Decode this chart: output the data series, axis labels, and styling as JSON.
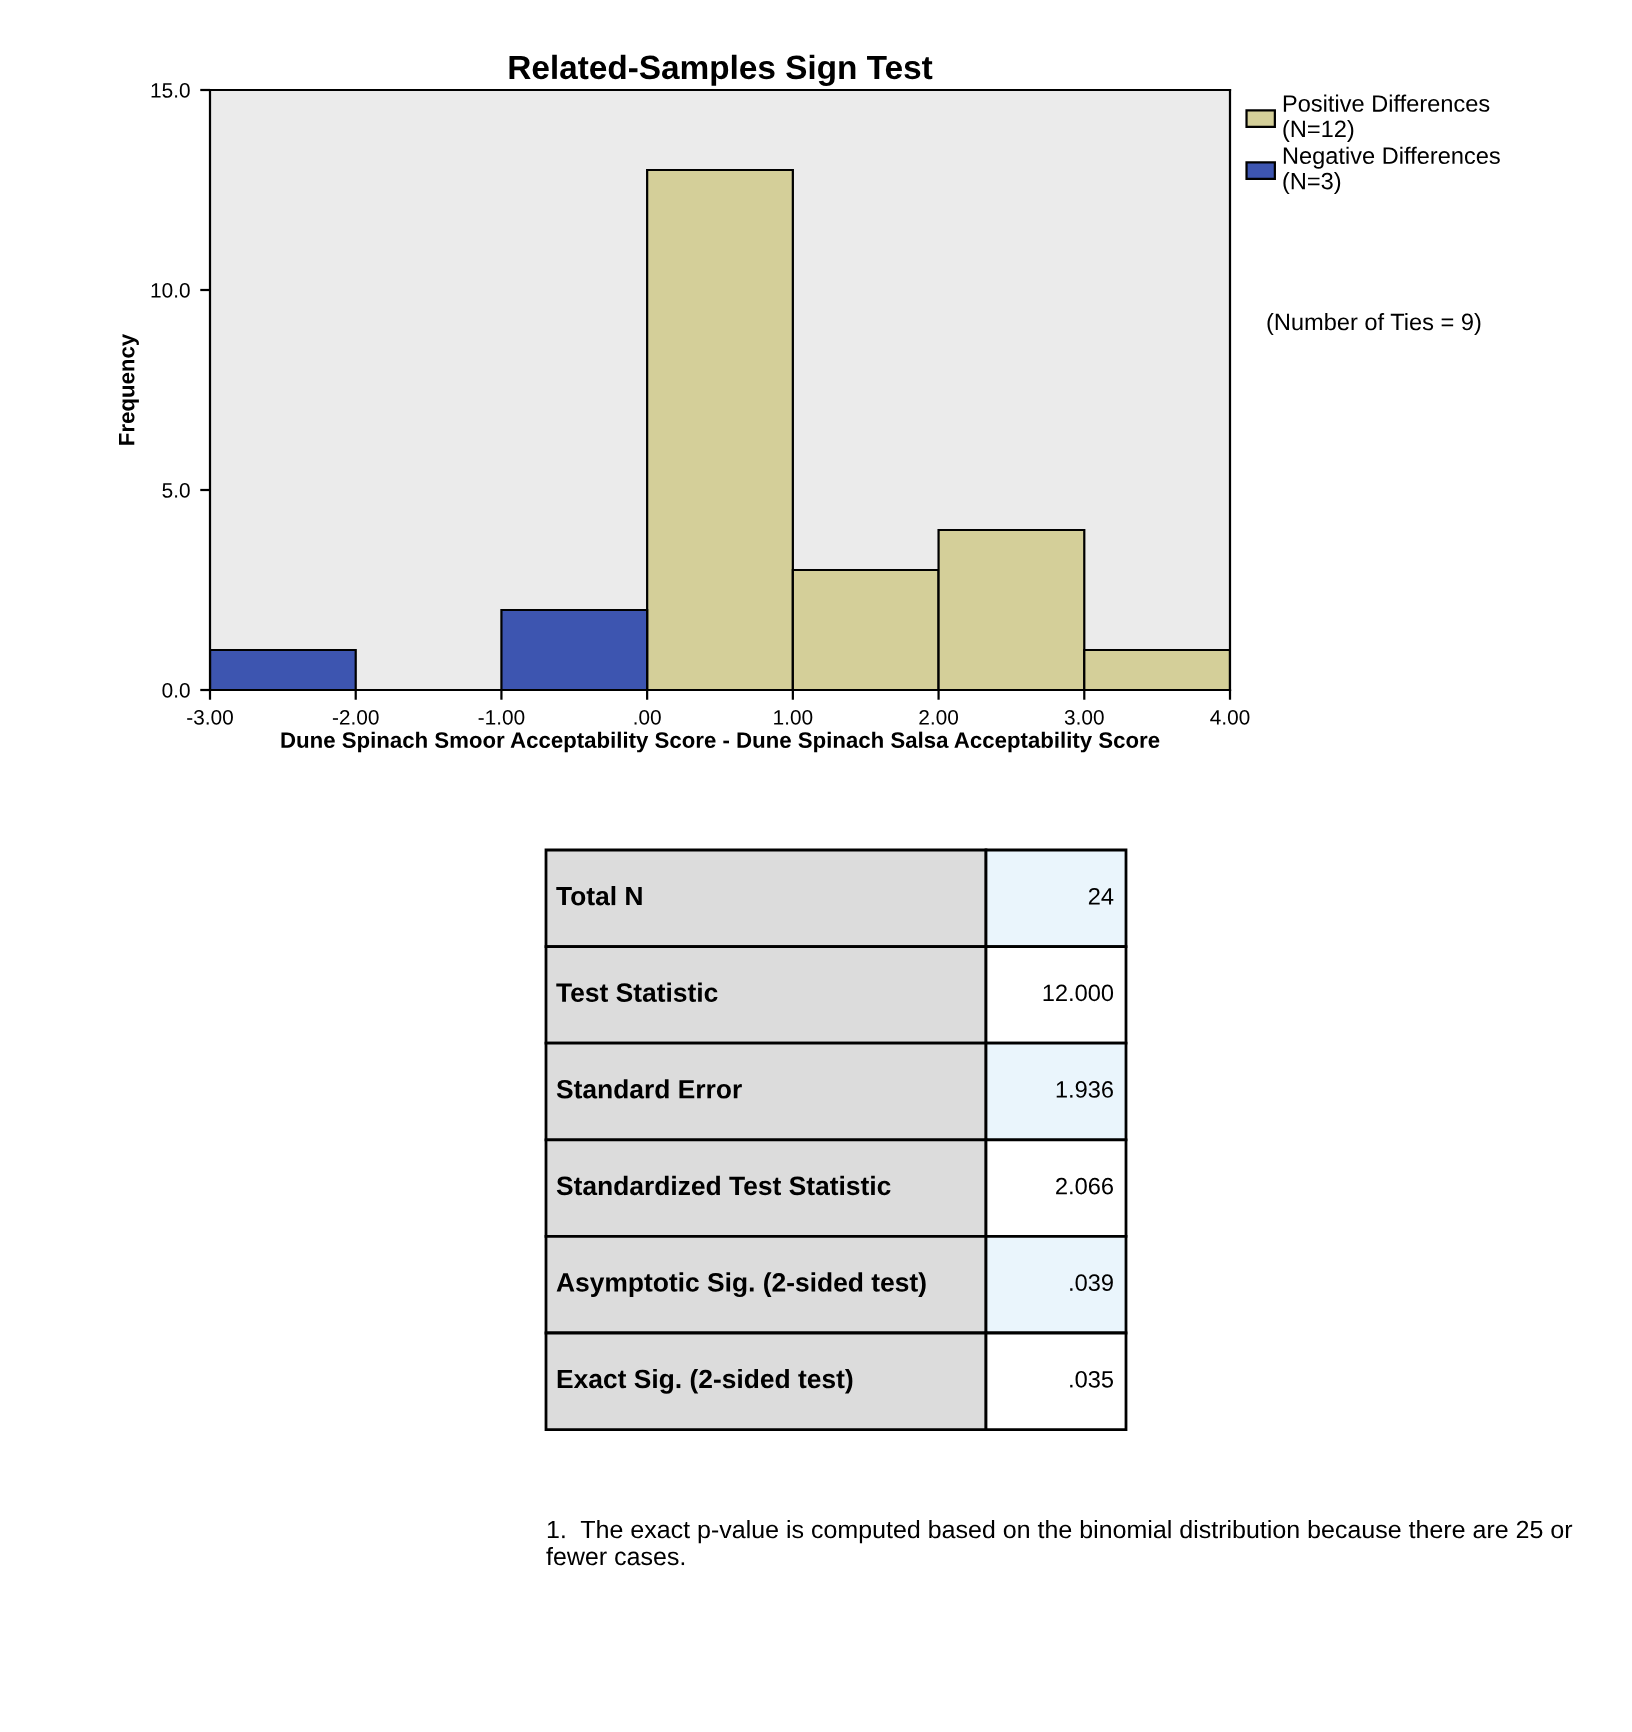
{
  "chart_data": {
    "type": "histogram",
    "title": "Related-Samples Sign Test",
    "xlabel": "Dune Spinach Smoor Acceptability Score - Dune Spinach Salsa Acceptability Score",
    "ylabel": "Frequency",
    "bins": [
      -3,
      -2,
      -1,
      0,
      1,
      2,
      3,
      4
    ],
    "series": [
      {
        "name": "Positive Differences\n(N=12)",
        "color": "#d4cf99",
        "values": [
          null,
          null,
          null,
          13,
          3,
          4,
          1
        ]
      },
      {
        "name": "Negative Differences\n(N=3)",
        "color": "#3d55b0",
        "values": [
          1,
          null,
          2,
          null,
          null,
          null,
          null
        ]
      }
    ],
    "xlim": [
      -3,
      4
    ],
    "xticks": [
      {
        "value": -3,
        "label": "-3.00"
      },
      {
        "value": -2,
        "label": "-2.00"
      },
      {
        "value": -1,
        "label": "-1.00"
      },
      {
        "value": 0,
        "label": ".00"
      },
      {
        "value": 1,
        "label": "1.00"
      },
      {
        "value": 2,
        "label": "2.00"
      },
      {
        "value": 3,
        "label": "3.00"
      },
      {
        "value": 4,
        "label": "4.00"
      }
    ],
    "ylim": [
      0,
      15
    ],
    "yticks": [
      {
        "value": 0,
        "label": "0.0"
      },
      {
        "value": 5,
        "label": "5.0"
      },
      {
        "value": 10,
        "label": "10.0"
      },
      {
        "value": 15,
        "label": "15.0"
      }
    ],
    "grid": false,
    "legend": "top right",
    "annotations": [
      "(Number of Ties = 9)",
      "Total N",
      "24",
      "Test Statistic",
      "12.000",
      "Standard Error",
      "1.936",
      "Standardized Test Statistic",
      "2.066",
      "Asymptotic Sig. (2-sided test)",
      ".039",
      "Exact Sig. (2-sided test)",
      ".035",
      "1.  The exact p-value is computed based on the binomial distribution because there are 25 or fewer cases."
    ]
  }
}
